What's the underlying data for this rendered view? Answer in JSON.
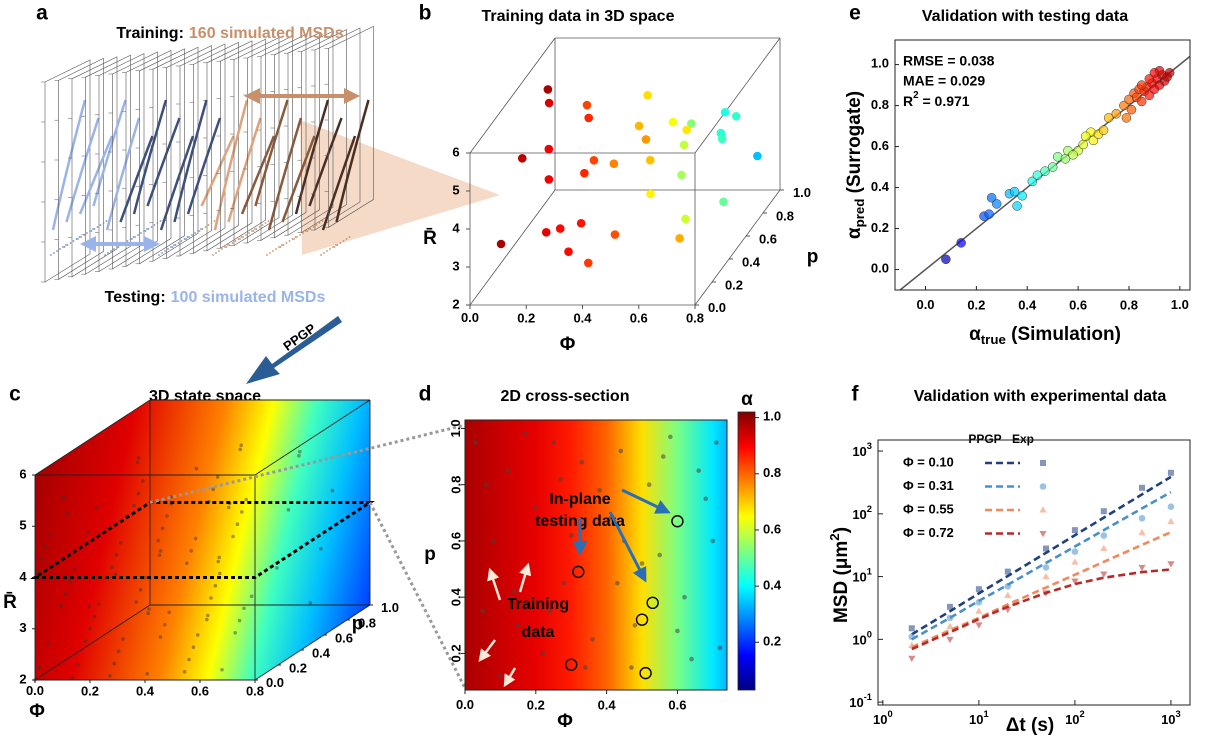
{
  "arrow_label": "PPGP",
  "chart_data": [
    {
      "type": "illustration",
      "panel": "a",
      "training_label": "Training:",
      "training_count": "160 simulated MSDs",
      "testing_label": "Testing:",
      "testing_count": "100 simulated MSDs"
    },
    {
      "type": "scatter3d",
      "panel": "b",
      "title": "Training data in 3D space",
      "xlabel": "Φ",
      "ylabel": "R̄",
      "zlabel": "p",
      "xlim": [
        0,
        0.8
      ],
      "ylim": [
        2,
        6
      ],
      "zlim": [
        0,
        1
      ],
      "xticks": [
        {
          "value": 0,
          "label": "0.0"
        },
        0.2,
        0.4,
        0.6,
        0.8
      ],
      "yticks": [
        2,
        3,
        4,
        5,
        6
      ],
      "zticks": [
        {
          "value": 0,
          "label": "0.0"
        },
        0.2,
        0.4,
        0.6,
        0.8,
        {
          "value": 1,
          "label": "1.0"
        }
      ],
      "colormap": "jet",
      "x": [
        0.05,
        0.1,
        0.15,
        0.2,
        0.25,
        0.3,
        0.35,
        0.4,
        0.45,
        0.5,
        0.55,
        0.6,
        0.65,
        0.7,
        0.75,
        0.08,
        0.18,
        0.28,
        0.38,
        0.48,
        0.58,
        0.68,
        0.78,
        0.12,
        0.22,
        0.32,
        0.42,
        0.52,
        0.62,
        0.72,
        0.02,
        0.33,
        0.47,
        0.57,
        0.67
      ],
      "y": [
        3.0,
        5.5,
        4.2,
        2.8,
        5.8,
        3.6,
        4.9,
        2.5,
        5.2,
        3.9,
        5.6,
        2.6,
        4.5,
        3.3,
        5.0,
        4.8,
        3.2,
        5.9,
        4.0,
        2.7,
        4.4,
        5.7,
        3.5,
        2.4,
        4.7,
        3.1,
        5.4,
        4.6,
        3.8,
        2.9,
        5.1,
        2.2,
        3.4,
        5.3,
        4.1
      ],
      "z": [
        0.2,
        0.6,
        0.9,
        0.4,
        0.1,
        0.7,
        0.3,
        0.8,
        0.5,
        0.95,
        0.25,
        0.55,
        0.85,
        0.15,
        0.65,
        0.35,
        0.75,
        0.45,
        0.05,
        0.9,
        0.6,
        0.3,
        0.8,
        0.5,
        0.2,
        0.1,
        0.7,
        0.4,
        0.9,
        0.6,
        0.85,
        0.3,
        0.15,
        0.5,
        0.75
      ],
      "c": [
        0.98,
        0.93,
        0.86,
        0.89,
        0.91,
        0.77,
        0.83,
        0.66,
        0.72,
        0.53,
        0.75,
        0.6,
        0.43,
        0.73,
        0.45,
        0.96,
        0.86,
        0.83,
        0.88,
        0.56,
        0.59,
        0.67,
        0.34,
        0.92,
        0.91,
        0.89,
        0.68,
        0.71,
        0.44,
        0.5,
        0.98,
        0.84,
        0.82,
        0.64,
        0.46
      ]
    },
    {
      "type": "surface3d",
      "panel": "c",
      "title": "3D state space",
      "xlabel": "Φ",
      "ylabel": "R̄",
      "zlabel": "p",
      "xlim": [
        0,
        0.8
      ],
      "ylim": [
        2,
        6
      ],
      "zlim": [
        0,
        1
      ],
      "xticks": [
        {
          "value": 0,
          "label": "0.0"
        },
        0.2,
        0.4,
        0.6,
        0.8
      ],
      "yticks": [
        2,
        3,
        4,
        5,
        6
      ],
      "zticks": [
        {
          "value": 0,
          "label": "0.0"
        },
        0.2,
        0.4,
        0.6,
        0.8,
        {
          "value": 1,
          "label": "1.0"
        }
      ]
    },
    {
      "type": "heatmap",
      "panel": "d",
      "title": "2D cross-section",
      "xlabel": "Φ",
      "ylabel": "p",
      "xlim": [
        0,
        0.74
      ],
      "ylim": [
        0.07,
        1.03
      ],
      "xticks": [
        {
          "value": 0,
          "label": "0.0"
        },
        0.2,
        0.4,
        0.6
      ],
      "yticks": [
        0.2,
        0.4,
        0.6,
        0.8,
        {
          "value": 1,
          "label": "1.0"
        }
      ],
      "colormap": "jet",
      "colorbar": {
        "label": "α",
        "lim": [
          0.03,
          1.02
        ],
        "ticks": [
          0.2,
          0.4,
          0.6,
          0.8,
          {
            "value": 1,
            "label": "1.0"
          }
        ]
      },
      "field": {
        "x": [
          0,
          0.1,
          0.2,
          0.3,
          0.4,
          0.5,
          0.6,
          0.7,
          0.74
        ],
        "alpha": [
          0.98,
          0.95,
          0.92,
          0.87,
          0.8,
          0.68,
          0.52,
          0.38,
          0.33
        ]
      },
      "training": {
        "x": [
          0.03,
          0.08,
          0.12,
          0.15,
          0.2,
          0.25,
          0.28,
          0.33,
          0.36,
          0.41,
          0.44,
          0.47,
          0.52,
          0.55,
          0.58,
          0.62,
          0.66,
          0.7,
          0.72,
          0.05,
          0.1,
          0.18,
          0.22,
          0.3,
          0.38,
          0.43,
          0.48,
          0.56,
          0.64,
          0.68,
          0.06,
          0.14,
          0.24,
          0.34,
          0.45,
          0.6,
          0.71,
          0.17,
          0.27,
          0.5
        ],
        "y": [
          0.95,
          0.6,
          0.85,
          0.3,
          0.72,
          0.95,
          0.45,
          0.88,
          0.25,
          0.68,
          0.92,
          0.15,
          0.8,
          0.55,
          0.97,
          0.4,
          0.85,
          0.6,
          0.22,
          0.35,
          0.12,
          0.5,
          0.2,
          0.62,
          0.78,
          0.45,
          0.3,
          0.9,
          0.18,
          0.75,
          0.8,
          0.42,
          0.35,
          0.15,
          0.6,
          0.28,
          0.95,
          0.98,
          0.82,
          0.52
        ]
      },
      "testing": {
        "x": [
          0.32,
          0.53,
          0.6,
          0.5,
          0.51,
          0.3
        ],
        "y": [
          0.49,
          0.38,
          0.67,
          0.32,
          0.13,
          0.16
        ]
      },
      "annotation_testing": [
        "In-plane",
        "testing data"
      ],
      "annotation_training": [
        "Training",
        "data"
      ]
    },
    {
      "type": "scatter",
      "panel": "e",
      "title": "Validation with testing data",
      "xlabel": {
        "text": "α",
        "sub": "true",
        "rest": " (Simulation)"
      },
      "ylabel": {
        "text": "α",
        "sub": "pred",
        "rest": " (Surrogate)"
      },
      "xlim": [
        -0.12,
        1.04
      ],
      "ylim": [
        -0.1,
        1.12
      ],
      "xticks": [
        {
          "value": 0,
          "label": "0.0"
        },
        0.2,
        0.4,
        0.6,
        0.8,
        {
          "value": 1,
          "label": "1.0"
        }
      ],
      "yticks": [
        {
          "value": 0,
          "label": "0.0"
        },
        0.2,
        0.4,
        0.6,
        0.8,
        {
          "value": 1,
          "label": "1.0"
        }
      ],
      "annotations": [
        "RMSE = 0.038",
        "MAE = 0.029"
      ],
      "r2": {
        "text": "R",
        "sup": "2",
        "rest": " = 0.971"
      },
      "colormap": "jet",
      "x": [
        0.08,
        0.14,
        0.23,
        0.25,
        0.26,
        0.28,
        0.33,
        0.35,
        0.36,
        0.38,
        0.42,
        0.47,
        0.5,
        0.52,
        0.55,
        0.56,
        0.6,
        0.62,
        0.65,
        0.66,
        0.68,
        0.7,
        0.72,
        0.75,
        0.78,
        0.8,
        0.81,
        0.82,
        0.83,
        0.84,
        0.85,
        0.86,
        0.87,
        0.88,
        0.89,
        0.9,
        0.91,
        0.92,
        0.93,
        0.94,
        0.95,
        0.96,
        0.92,
        0.88,
        0.9,
        0.85,
        0.79,
        0.58,
        0.44,
        0.63
      ],
      "y": [
        0.05,
        0.13,
        0.26,
        0.27,
        0.35,
        0.32,
        0.37,
        0.38,
        0.31,
        0.36,
        0.43,
        0.48,
        0.5,
        0.55,
        0.54,
        0.58,
        0.58,
        0.61,
        0.67,
        0.63,
        0.66,
        0.68,
        0.74,
        0.76,
        0.8,
        0.83,
        0.78,
        0.86,
        0.84,
        0.88,
        0.82,
        0.87,
        0.89,
        0.85,
        0.91,
        0.88,
        0.93,
        0.9,
        0.95,
        0.92,
        0.94,
        0.96,
        0.97,
        0.93,
        0.96,
        0.9,
        0.74,
        0.56,
        0.46,
        0.65
      ]
    },
    {
      "type": "loglog",
      "panel": "f",
      "title": "Validation with experimental data",
      "xlabel": "Δt (s)",
      "ylabel": {
        "text": "MSD (μm",
        "sup": "2",
        "rest": ")"
      },
      "xlim": [
        0.89,
        1580
      ],
      "ylim": [
        0.09,
        1500
      ],
      "xticks": [
        {
          "value": 1,
          "label": "10",
          "exp": "0"
        },
        {
          "value": 10,
          "label": "10",
          "exp": "1"
        },
        {
          "value": 100,
          "label": "10",
          "exp": "2"
        },
        {
          "value": 1000,
          "label": "10",
          "exp": "3"
        }
      ],
      "yticks": [
        {
          "value": 0.1,
          "label": "10",
          "exp": "-1"
        },
        {
          "value": 1,
          "label": "10",
          "exp": "0"
        },
        {
          "value": 10,
          "label": "10",
          "exp": "1"
        },
        {
          "value": 100,
          "label": "10",
          "exp": "2"
        },
        {
          "value": 1000,
          "label": "10",
          "exp": "3"
        }
      ],
      "legend_header": [
        "PPGP",
        "Exp"
      ],
      "x": [
        2,
        5,
        10,
        20,
        50,
        100,
        200,
        500,
        1000
      ],
      "series": [
        {
          "name": "Φ = 0.10",
          "color": "#1f3f7f",
          "marker": "square",
          "ppgp": [
            1.2,
            2.8,
            5.4,
            10.2,
            23.9,
            45.6,
            87,
            204,
            388
          ],
          "exp": [
            1.5,
            3.3,
            6.3,
            12,
            28,
            55,
            110,
            260,
            450
          ]
        },
        {
          "name": "Φ = 0.31",
          "color": "#4a90c8",
          "marker": "circle",
          "ppgp": [
            1.0,
            2.2,
            4.1,
            7.4,
            16.5,
            30.1,
            55,
            122,
            222
          ],
          "exp": [
            1.1,
            2.2,
            3.9,
            7,
            14,
            25,
            45,
            85,
            130
          ]
        },
        {
          "name": "Φ = 0.55",
          "color": "#f08a5d",
          "marker": "triangle-up",
          "ppgp": [
            0.75,
            1.4,
            2.2,
            3.6,
            6.7,
            10.7,
            17.2,
            32,
            51
          ],
          "exp": [
            0.8,
            1.6,
            2.8,
            5,
            10,
            17,
            28,
            50,
            75
          ]
        },
        {
          "name": "Φ = 0.72",
          "color": "#b52a2a",
          "marker": "triangle-down",
          "ppgp": [
            0.7,
            1.3,
            2.1,
            3.3,
            5.5,
            7.6,
            9.6,
            11.8,
            13
          ],
          "exp": [
            0.5,
            1.0,
            1.7,
            3,
            5.5,
            8.5,
            11,
            14,
            16
          ]
        }
      ]
    }
  ]
}
